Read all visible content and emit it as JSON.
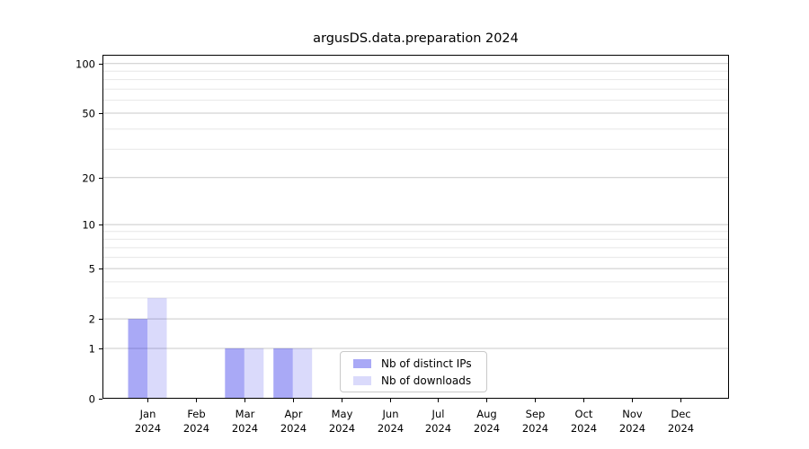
{
  "title": "argusDS.data.preparation 2024",
  "legend": {
    "position": "lower center",
    "items": [
      {
        "label": "Nb of distinct IPs",
        "color": "#a9a9f6"
      },
      {
        "label": "Nb of downloads",
        "color": "#dadafb"
      }
    ]
  },
  "chart_data": {
    "type": "bar",
    "title": "argusDS.data.preparation 2024",
    "categories": [
      "Jan",
      "Feb",
      "Mar",
      "Apr",
      "May",
      "Jun",
      "Jul",
      "Aug",
      "Sep",
      "Oct",
      "Nov",
      "Dec"
    ],
    "category_year": "2024",
    "series": [
      {
        "name": "Nb of distinct IPs",
        "color": "#a9a9f6",
        "fill_rgb": "10,10,230",
        "fill_opacity": 0.35,
        "values": [
          2,
          0,
          1,
          1,
          0,
          0,
          0,
          0,
          0,
          0,
          0,
          0
        ]
      },
      {
        "name": "Nb of downloads",
        "color": "#dadafb",
        "fill_rgb": "10,10,230",
        "fill_opacity": 0.15,
        "values": [
          3,
          0,
          1,
          1,
          0,
          0,
          0,
          0,
          0,
          0,
          0,
          0
        ]
      }
    ],
    "xlabel": "",
    "ylabel": "",
    "yscale": "symlog ln(1+v)",
    "ylim": [
      0,
      113
    ],
    "y_major_ticks": [
      0,
      1,
      2,
      5,
      10,
      20,
      50,
      100
    ],
    "y_minor_ticks": [
      3,
      4,
      6,
      7,
      8,
      9,
      30,
      40,
      60,
      70,
      80,
      90
    ],
    "grid": "horizontal major+minor",
    "colors": {
      "grid_major": "#c9c9c9",
      "grid_minor": "#e7e7e7",
      "axis": "#000000"
    }
  }
}
